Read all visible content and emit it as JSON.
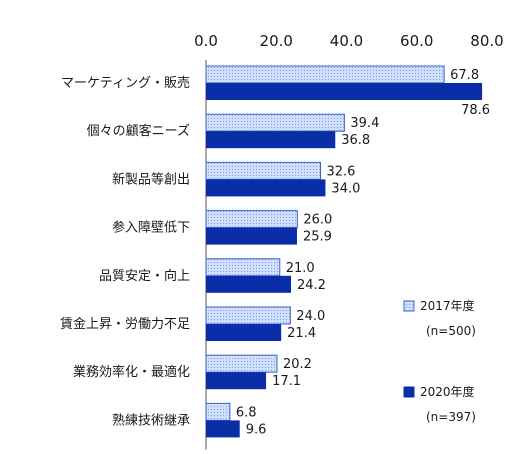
{
  "chart_data": {
    "type": "bar",
    "orientation": "horizontal",
    "xlim": [
      0,
      80
    ],
    "ticks": [
      {
        "value": 0,
        "label": "0.0"
      },
      {
        "value": 20,
        "label": "20.0"
      },
      {
        "value": 40,
        "label": "40.0"
      },
      {
        "value": 60,
        "label": "60.0"
      },
      {
        "value": 80,
        "label": "80.0"
      }
    ],
    "axis_position": "top",
    "grid": false,
    "legend_position": "right",
    "categories": [
      "マーケティング・販売",
      "個々の顧客ニーズ",
      "新製品等創出",
      "参入障壁低下",
      "品質安定・向上",
      "賃金上昇・労働力不足",
      "業務効率化・最適化",
      "熟練技術継承"
    ],
    "series": [
      {
        "name": "2017年度",
        "note": "(n=500)",
        "fill": "#cfe0ff",
        "stroke": "#3f5fc8",
        "pattern": "dotted",
        "values": [
          67.8,
          39.4,
          32.6,
          26.0,
          21.0,
          24.0,
          20.2,
          6.8
        ],
        "labels": [
          "67.8",
          "39.4",
          "32.6",
          "26.0",
          "21.0",
          "24.0",
          "20.2",
          "6.8"
        ]
      },
      {
        "name": "2020年度",
        "note": "(n=397)",
        "fill": "#0a2ea8",
        "stroke": "#0a2ea8",
        "pattern": "solid",
        "values": [
          78.6,
          36.8,
          34.0,
          25.9,
          24.2,
          21.4,
          17.1,
          9.6
        ],
        "labels": [
          "78.6",
          "36.8",
          "34.0",
          "25.9",
          "24.2",
          "21.4",
          "17.1",
          "9.6"
        ]
      }
    ]
  }
}
